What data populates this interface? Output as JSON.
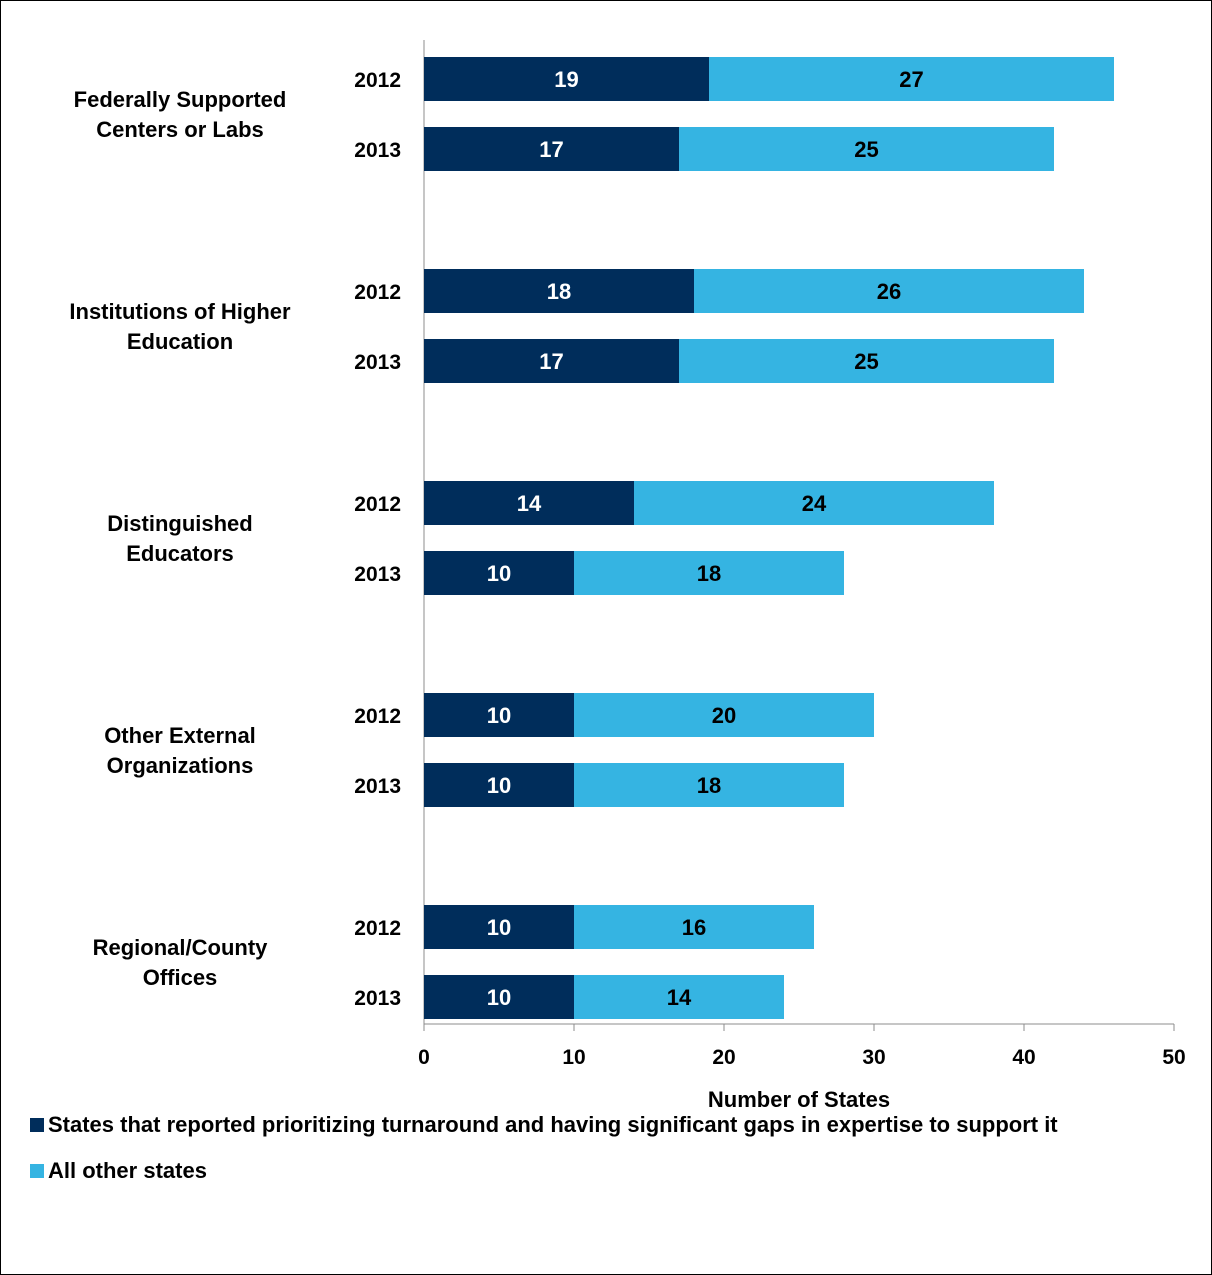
{
  "chart_data": {
    "type": "bar",
    "orientation": "horizontal",
    "stacked": true,
    "xlabel": "Number of States",
    "xlim": [
      0,
      50
    ],
    "x_ticks": [
      0,
      10,
      20,
      30,
      40,
      50
    ],
    "groups": [
      {
        "label": "Federally Supported Centers or Labs",
        "label_lines": [
          "Federally Supported",
          "Centers or Labs"
        ],
        "bars": [
          {
            "year": "2012",
            "values": [
              19,
              27
            ]
          },
          {
            "year": "2013",
            "values": [
              17,
              25
            ]
          }
        ]
      },
      {
        "label": "Institutions of Higher Education",
        "label_lines": [
          "Institutions of Higher",
          "Education"
        ],
        "bars": [
          {
            "year": "2012",
            "values": [
              18,
              26
            ]
          },
          {
            "year": "2013",
            "values": [
              17,
              25
            ]
          }
        ]
      },
      {
        "label": "Distinguished Educators",
        "label_lines": [
          "Distinguished",
          "Educators"
        ],
        "bars": [
          {
            "year": "2012",
            "values": [
              14,
              24
            ]
          },
          {
            "year": "2013",
            "values": [
              10,
              18
            ]
          }
        ]
      },
      {
        "label": "Other External Organizations",
        "label_lines": [
          "Other External",
          "Organizations"
        ],
        "bars": [
          {
            "year": "2012",
            "values": [
              10,
              20
            ]
          },
          {
            "year": "2013",
            "values": [
              10,
              18
            ]
          }
        ]
      },
      {
        "label": "Regional/County Offices",
        "label_lines": [
          "Regional/County",
          "Offices"
        ],
        "bars": [
          {
            "year": "2012",
            "values": [
              10,
              16
            ]
          },
          {
            "year": "2013",
            "values": [
              10,
              14
            ]
          }
        ]
      }
    ],
    "series": [
      {
        "name": "States that reported prioritizing turnaround and having significant gaps in expertise to support it",
        "color": "#002d5b"
      },
      {
        "name": "All other states",
        "color": "#35b4e2"
      }
    ],
    "legend_position": "bottom-left",
    "grid": false
  }
}
